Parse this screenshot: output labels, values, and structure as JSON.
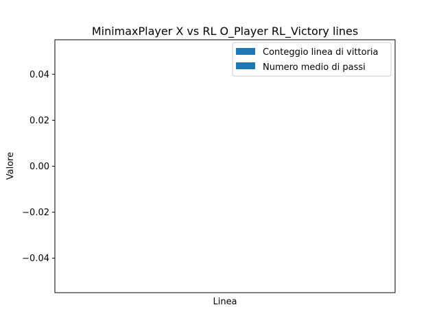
{
  "chart_data": {
    "type": "bar",
    "title": "MinimaxPlayer X vs RL O_Player RL_Victory lines",
    "xlabel": "Linea",
    "ylabel": "Valore",
    "ylim": [
      -0.055,
      0.055
    ],
    "yticks": [
      -0.04,
      -0.02,
      0.0,
      0.02,
      0.04
    ],
    "ytick_labels": [
      "−0.04",
      "−0.02",
      "0.00",
      "0.02",
      "0.04"
    ],
    "categories": [],
    "series": [
      {
        "name": "Conteggio linea di vittoria",
        "values": [],
        "color": "#1f77b4"
      },
      {
        "name": "Numero medio di passi",
        "values": [],
        "color": "#1f77b4"
      }
    ],
    "grid": false,
    "legend_position": "top-right"
  }
}
